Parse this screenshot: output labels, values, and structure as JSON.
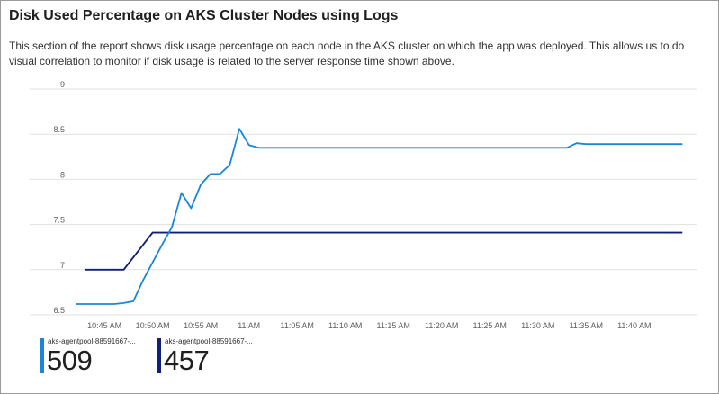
{
  "title": "Disk Used Percentage on AKS Cluster Nodes using Logs",
  "description": "This section of the report shows disk usage percentage on each node in the AKS cluster on which the app was deployed. This allows us to do visual correlation to monitor if disk usage is related to the server response time shown above.",
  "colors": {
    "series1": "#1a86d9",
    "series2": "#0f1f7a",
    "grid": "#e1e1e1",
    "tick": "#605e5c"
  },
  "chart_data": {
    "type": "line",
    "xlabel": "",
    "ylabel": "",
    "ylim": [
      6.5,
      9
    ],
    "xlim": [
      "10:42",
      "11:46"
    ],
    "grid": true,
    "y_ticks": [
      "6.5",
      "7",
      "7.5",
      "8",
      "8.5",
      "9"
    ],
    "x_ticks": [
      {
        "t": "10:45",
        "label": "10:45 AM"
      },
      {
        "t": "10:50",
        "label": "10:50 AM"
      },
      {
        "t": "10:55",
        "label": "10:55 AM"
      },
      {
        "t": "11:00",
        "label": "11 AM"
      },
      {
        "t": "11:05",
        "label": "11:05 AM"
      },
      {
        "t": "11:10",
        "label": "11:10 AM"
      },
      {
        "t": "11:15",
        "label": "11:15 AM"
      },
      {
        "t": "11:20",
        "label": "11:20 AM"
      },
      {
        "t": "11:25",
        "label": "11:25 AM"
      },
      {
        "t": "11:30",
        "label": "11:30 AM"
      },
      {
        "t": "11:35",
        "label": "11:35 AM"
      },
      {
        "t": "11:40",
        "label": "11:40 AM"
      }
    ],
    "series": [
      {
        "name": "aks-agentpool-88591667-...",
        "latest": "509",
        "x": [
          "10:42",
          "10:44",
          "10:46",
          "10:47",
          "10:48",
          "10:49",
          "10:50",
          "10:51",
          "10:52",
          "10:53",
          "10:54",
          "10:55",
          "10:56",
          "10:57",
          "10:58",
          "10:59",
          "11:00",
          "11:01",
          "11:05",
          "11:10",
          "11:15",
          "11:20",
          "11:25",
          "11:30",
          "11:33",
          "11:34",
          "11:35",
          "11:40",
          "11:45"
        ],
        "y": [
          6.62,
          6.62,
          6.62,
          6.63,
          6.65,
          6.88,
          7.08,
          7.28,
          7.47,
          7.85,
          7.68,
          7.94,
          8.06,
          8.06,
          8.16,
          8.56,
          8.38,
          8.35,
          8.35,
          8.35,
          8.35,
          8.35,
          8.35,
          8.35,
          8.35,
          8.4,
          8.39,
          8.39,
          8.39
        ]
      },
      {
        "name": "aks-agentpool-88591667-...",
        "latest": "457",
        "x": [
          "10:43",
          "10:47",
          "10:50",
          "10:55",
          "11:00",
          "11:10",
          "11:20",
          "11:30",
          "11:40",
          "11:45"
        ],
        "y": [
          7.0,
          7.0,
          7.41,
          7.41,
          7.41,
          7.41,
          7.41,
          7.41,
          7.41,
          7.41
        ]
      }
    ]
  }
}
